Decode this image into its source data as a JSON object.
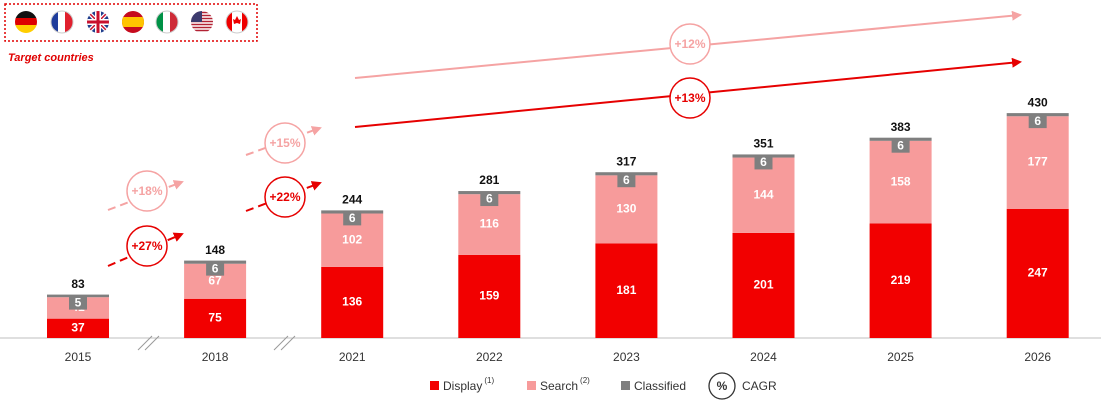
{
  "chart_data": {
    "type": "stacked-bar",
    "subtitle": "Target countries",
    "categories": [
      "2015",
      "2018",
      "2021",
      "2022",
      "2023",
      "2024",
      "2025",
      "2026"
    ],
    "series": [
      {
        "name": "Display",
        "footnote": "(1)",
        "color": "#f20000",
        "values": [
          37,
          75,
          136,
          159,
          181,
          201,
          219,
          247
        ]
      },
      {
        "name": "Search",
        "footnote": "(2)",
        "color": "#f79b9b",
        "values": [
          41,
          67,
          102,
          116,
          130,
          144,
          158,
          177
        ]
      },
      {
        "name": "Classified",
        "color": "#7f7f7f",
        "values": [
          5,
          6,
          6,
          6,
          6,
          6,
          6,
          6
        ]
      }
    ],
    "totals": [
      83,
      148,
      244,
      281,
      317,
      351,
      383,
      430
    ],
    "annotations": [
      {
        "label": "+18%",
        "color": "#f5a3a3"
      },
      {
        "label": "+27%",
        "color": "#e60000"
      },
      {
        "label": "+15%",
        "color": "#f5a3a3"
      },
      {
        "label": "+22%",
        "color": "#e60000"
      },
      {
        "label": "+12%",
        "color": "#f5a3a3"
      },
      {
        "label": "+13%",
        "color": "#e60000"
      }
    ],
    "cagr_legend": {
      "symbol": "%",
      "label": "CAGR"
    }
  }
}
